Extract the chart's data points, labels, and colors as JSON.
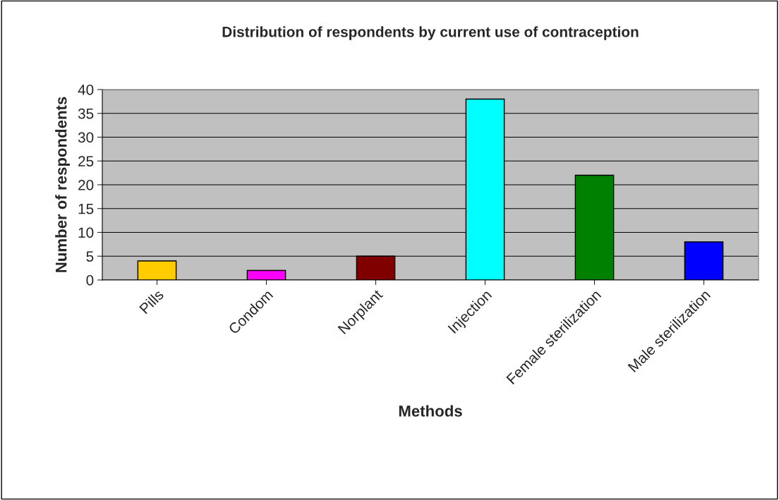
{
  "chart_data": {
    "type": "bar",
    "title": "Distribution of respondents by current use of contraception",
    "xlabel": "Methods",
    "ylabel": "Number of respondents",
    "categories": [
      "Pills",
      "Condom",
      "Norplant",
      "Injection",
      "Female sterilization",
      "Male sterilization"
    ],
    "values": [
      4,
      2,
      5,
      38,
      22,
      8
    ],
    "colors": [
      "#ffcc00",
      "#ff00ff",
      "#800000",
      "#00ffff",
      "#008000",
      "#0000ff"
    ],
    "ylim": [
      0,
      40
    ],
    "yticks": [
      0,
      5,
      10,
      15,
      20,
      25,
      30,
      35,
      40
    ],
    "grid": "y",
    "legend": false
  }
}
